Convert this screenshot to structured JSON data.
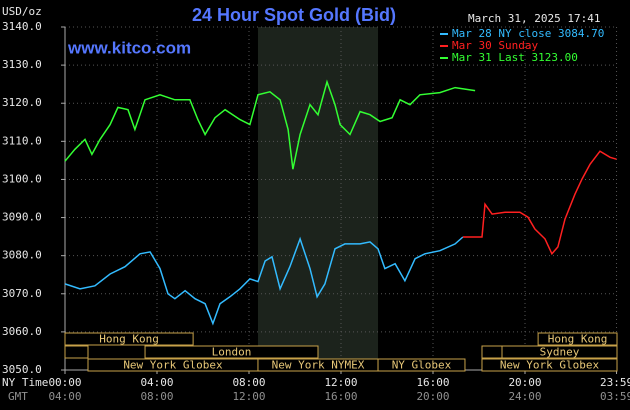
{
  "chart_data": {
    "type": "line",
    "title": "24 Hour Spot Gold (Bid)",
    "y_label": "USD/oz",
    "timestamp": "March 31, 2025 17:41",
    "watermark": "www.kitco.com",
    "x_row_labels": [
      "NY Time",
      "GMT"
    ],
    "xlim": [
      0,
      24
    ],
    "ylim": [
      3050,
      3140
    ],
    "xticks": [
      {
        "value": 0,
        "label": "00:00"
      },
      {
        "value": 4,
        "label": "04:00"
      },
      {
        "value": 8,
        "label": "08:00"
      },
      {
        "value": 12,
        "label": "12:00"
      },
      {
        "value": 16,
        "label": "16:00"
      },
      {
        "value": 20,
        "label": "20:00"
      },
      {
        "value": 23.98,
        "label": "23:59"
      }
    ],
    "xticks_gmt": [
      "04:00",
      "08:00",
      "12:00",
      "16:00",
      "20:00",
      "24:00",
      "03:59"
    ],
    "yticks": [
      {
        "value": 3140,
        "label": "3140.0"
      },
      {
        "value": 3130,
        "label": "3130.0"
      },
      {
        "value": 3120,
        "label": "3120.0"
      },
      {
        "value": 3110,
        "label": "3110.0"
      },
      {
        "value": 3100,
        "label": "3100.0"
      },
      {
        "value": 3090,
        "label": "3090.0"
      },
      {
        "value": 3080,
        "label": "3080.0"
      },
      {
        "value": 3070,
        "label": "3070.0"
      },
      {
        "value": 3060,
        "label": "3060.0"
      },
      {
        "value": 3050,
        "label": "3050.0"
      }
    ],
    "grid": true,
    "shaded_range": [
      8.39,
      13.61
    ],
    "series": [
      {
        "name": "Mar 28 NY close 3084.70",
        "color": "#33bbff",
        "x": [
          0,
          0.65,
          1.3,
          1.96,
          2.61,
          3.26,
          3.7,
          4.13,
          4.48,
          4.78,
          5.22,
          5.65,
          6.09,
          6.43,
          6.74,
          7.17,
          7.61,
          8.04,
          8.39,
          8.7,
          9.0,
          9.35,
          9.78,
          10.22,
          10.65,
          10.96,
          11.3,
          11.74,
          12.17,
          12.83,
          13.26,
          13.61,
          13.91,
          14.35,
          14.78,
          15.22,
          15.65,
          16.3,
          16.96,
          17.3
        ],
        "values": [
          3072.6,
          3071.3,
          3072.1,
          3075.2,
          3077.1,
          3080.5,
          3081.0,
          3076.6,
          3070.0,
          3068.7,
          3070.8,
          3068.7,
          3067.4,
          3062.2,
          3067.4,
          3069.2,
          3071.3,
          3073.9,
          3073.2,
          3078.6,
          3079.7,
          3071.3,
          3077.1,
          3084.4,
          3076.6,
          3069.2,
          3072.6,
          3081.8,
          3083.1,
          3083.1,
          3083.6,
          3081.8,
          3076.6,
          3077.9,
          3073.4,
          3079.2,
          3080.5,
          3081.3,
          3083.1,
          3084.9
        ]
      },
      {
        "name": "Mar 30 Sunday",
        "color": "#ff2020",
        "x": [
          17.3,
          18.13,
          18.26,
          18.57,
          19.13,
          19.78,
          20.13,
          20.43,
          20.87,
          21.17,
          21.43,
          21.74,
          22.17,
          22.48,
          22.83,
          23.26,
          23.7,
          23.98
        ],
        "values": [
          3084.9,
          3084.9,
          3093.5,
          3090.9,
          3091.4,
          3091.4,
          3090.1,
          3087.0,
          3084.4,
          3080.5,
          3082.3,
          3089.6,
          3096.1,
          3100.1,
          3104.0,
          3107.4,
          3105.8,
          3105.3
        ]
      },
      {
        "name": "Mar 31 Last 3123.00",
        "color": "#33ff33",
        "x": [
          0,
          0.43,
          0.87,
          1.17,
          1.52,
          1.96,
          2.3,
          2.74,
          3.04,
          3.48,
          4.13,
          4.78,
          5.43,
          5.78,
          6.09,
          6.52,
          6.96,
          7.61,
          8.04,
          8.39,
          8.91,
          9.35,
          9.7,
          9.91,
          10.22,
          10.65,
          11.0,
          11.39,
          11.74,
          11.96,
          12.39,
          12.83,
          13.26,
          13.7,
          14.22,
          14.57,
          15.0,
          15.43,
          16.3,
          16.96,
          17.83
        ],
        "values": [
          3104.8,
          3107.9,
          3110.5,
          3106.6,
          3110.5,
          3114.4,
          3118.9,
          3118.3,
          3113.1,
          3120.9,
          3122.2,
          3120.9,
          3120.9,
          3115.7,
          3111.8,
          3116.2,
          3118.3,
          3115.7,
          3114.4,
          3122.2,
          3123.0,
          3120.9,
          3113.1,
          3102.7,
          3111.8,
          3119.6,
          3117.0,
          3125.6,
          3119.6,
          3114.4,
          3111.8,
          3117.8,
          3117.0,
          3115.2,
          3116.2,
          3120.9,
          3119.6,
          3122.2,
          3122.8,
          3124.1,
          3123.3
        ]
      }
    ],
    "session_rows": [
      [
        {
          "label": "Hong Kong",
          "start": 0,
          "end": 5.57
        },
        {
          "label": "Hong Kong",
          "start": 20.57,
          "end": 24
        }
      ],
      [
        {
          "label": null,
          "start": 0,
          "end": 1.0
        },
        {
          "label": "London",
          "start": 3.48,
          "end": 11.0
        },
        {
          "label": null,
          "start": 18.13,
          "end": 19.0
        },
        {
          "label": "Sydney",
          "start": 19.0,
          "end": 24
        }
      ],
      [
        {
          "label": "New York Globex",
          "start": 1.0,
          "end": 8.39
        },
        {
          "label": "New York NYMEX",
          "start": 8.39,
          "end": 13.61
        },
        {
          "label": "NY Globex",
          "start": 13.61,
          "end": 17.39
        },
        {
          "label": "New York Globex",
          "start": 18.13,
          "end": 24
        }
      ]
    ]
  }
}
